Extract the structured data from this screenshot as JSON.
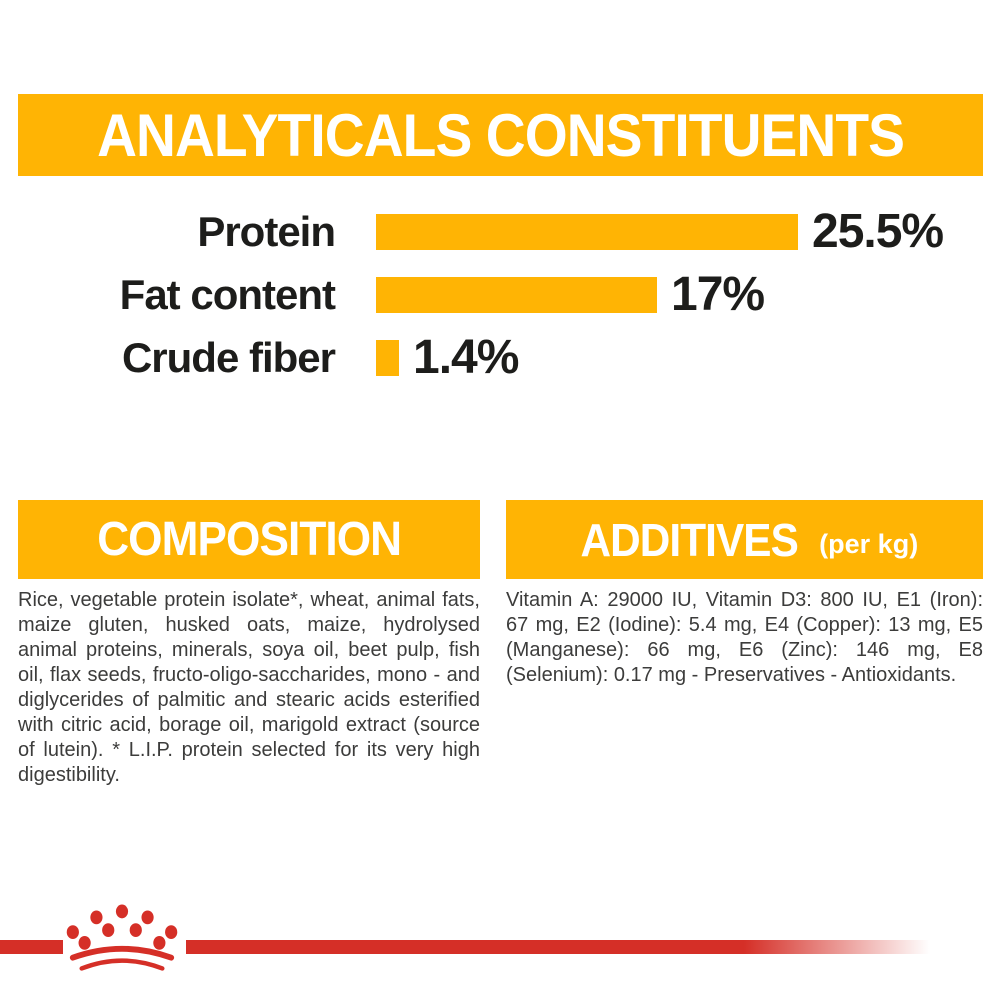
{
  "colors": {
    "brand_yellow": "#FFB404",
    "brand_red": "#D52F27",
    "text_dark": "#1D1D1B",
    "text_gray": "#3C3C3B"
  },
  "analyticals": {
    "title": "ANALYTICALS CONSTITUENTS",
    "chart_data": {
      "type": "bar",
      "orientation": "horizontal",
      "title": "ANALYTICALS CONSTITUENTS",
      "categories": [
        "Protein",
        "Fat content",
        "Crude fiber"
      ],
      "values": [
        25.5,
        17,
        1.4
      ],
      "value_labels": [
        "25.5%",
        "17%",
        "1.4%"
      ],
      "unit": "%",
      "xlim": [
        0,
        26
      ],
      "bar_color": "#FFB404",
      "grid": false,
      "legend": false
    }
  },
  "composition": {
    "title": "COMPOSITION",
    "body": "Rice, vegetable protein isolate*, wheat, animal fats, maize gluten, husked oats, maize, hydrolysed animal proteins, minerals, soya oil, beet pulp, fish oil, flax seeds, fructo-oligo-saccharides, mono - and diglycerides of palmitic and stearic acids esterified with citric acid, borage oil, marigold extract (source of lutein). * L.I.P. protein selected for its very high digestibility."
  },
  "additives": {
    "title": "ADDITIVES",
    "subtitle": "(per kg)",
    "body": "Vitamin A: 29000 IU, Vitamin D3: 800 IU, E1 (Iron): 67 mg, E2 (Iodine): 5.4 mg, E4 (Copper): 13 mg, E5 (Manganese): 66 mg, E6 (Zinc): 146 mg, E8 (Selenium): 0.17 mg - Preservatives - Antioxidants."
  },
  "footer": {
    "logo": "royal-canin-crown"
  }
}
